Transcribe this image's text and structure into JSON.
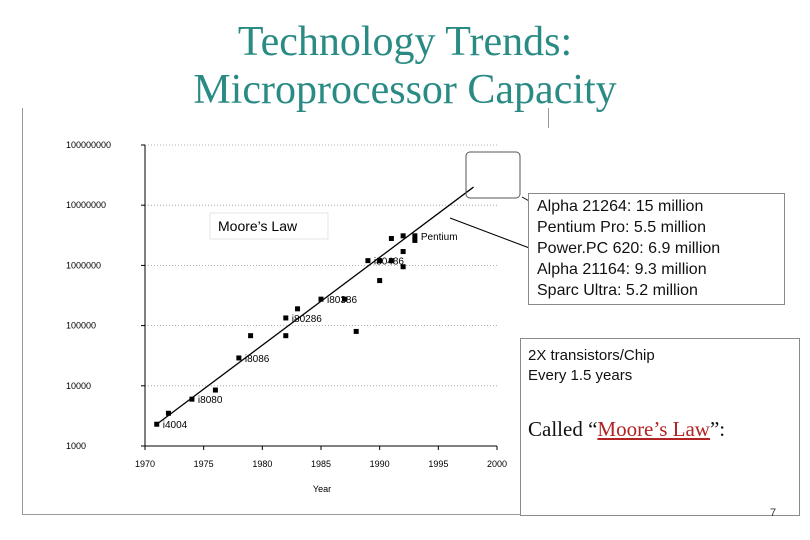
{
  "slide": {
    "title_line1": "Technology Trends:",
    "title_line2": "Microprocessor Capacity",
    "page_number": "7"
  },
  "callout": {
    "lines": [
      "Alpha 21264: 15 million",
      "Pentium Pro: 5.5 million",
      "Power.PC 620: 6.9 million",
      "Alpha 21164: 9.3 million",
      "Sparc Ultra: 5.2 million"
    ]
  },
  "box2": {
    "line1": "2X transistors/Chip",
    "line2": "Every 1.5 years",
    "called_prefix": "Called “",
    "called_link": "Moore’s Law",
    "called_suffix": "”:"
  },
  "chart_data": {
    "type": "scatter",
    "xlabel": "Year",
    "ylabel": "",
    "log_y": true,
    "xlim": [
      1970,
      2000
    ],
    "ylim": [
      1000,
      100000000
    ],
    "x_ticks": [
      "1970",
      "1975",
      "1980",
      "1985",
      "1990",
      "1995",
      "2000"
    ],
    "y_ticks": [
      "1000",
      "10000",
      "100000",
      "1000000",
      "10000000",
      "100000000"
    ],
    "grid": "horizontal dotted",
    "annotation": "Moore’s Law",
    "trend_line": {
      "x": [
        1971,
        1998
      ],
      "y": [
        2300,
        20000000
      ]
    },
    "points": [
      {
        "x": 1971,
        "y": 2300,
        "label": "i4004"
      },
      {
        "x": 1972,
        "y": 3500,
        "label": ""
      },
      {
        "x": 1974,
        "y": 6000,
        "label": "i8080"
      },
      {
        "x": 1976,
        "y": 8500,
        "label": ""
      },
      {
        "x": 1978,
        "y": 29000,
        "label": "i8086"
      },
      {
        "x": 1979,
        "y": 68000,
        "label": ""
      },
      {
        "x": 1982,
        "y": 134000,
        "label": "i80286"
      },
      {
        "x": 1982,
        "y": 68000,
        "label": ""
      },
      {
        "x": 1983,
        "y": 190000,
        "label": ""
      },
      {
        "x": 1985,
        "y": 275000,
        "label": "i80386"
      },
      {
        "x": 1987,
        "y": 275000,
        "label": ""
      },
      {
        "x": 1988,
        "y": 80000,
        "label": ""
      },
      {
        "x": 1989,
        "y": 1200000,
        "label": "i80486"
      },
      {
        "x": 1990,
        "y": 1200000,
        "label": ""
      },
      {
        "x": 1990,
        "y": 560000,
        "label": ""
      },
      {
        "x": 1991,
        "y": 2800000,
        "label": ""
      },
      {
        "x": 1991,
        "y": 1200000,
        "label": ""
      },
      {
        "x": 1992,
        "y": 3100000,
        "label": ""
      },
      {
        "x": 1992,
        "y": 1700000,
        "label": ""
      },
      {
        "x": 1992,
        "y": 950000,
        "label": ""
      },
      {
        "x": 1993,
        "y": 3100000,
        "label": "Pentium"
      },
      {
        "x": 1993,
        "y": 2600000,
        "label": ""
      }
    ]
  }
}
